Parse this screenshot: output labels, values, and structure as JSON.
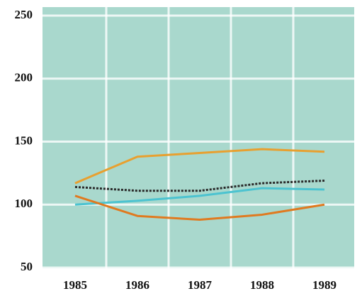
{
  "chart_data": {
    "type": "line",
    "categories": [
      "1985",
      "1986",
      "1987",
      "1988",
      "1989"
    ],
    "series": [
      {
        "color": "#e8a030",
        "values": [
          117,
          138,
          141,
          144,
          142
        ]
      },
      {
        "color": "#2a2a2a",
        "dashed": true,
        "values": [
          114,
          111,
          111,
          117,
          119
        ]
      },
      {
        "color": "#4cc3d0",
        "values": [
          100,
          103,
          107,
          113,
          112
        ]
      },
      {
        "color": "#e07a20",
        "values": [
          107,
          91,
          88,
          92,
          100
        ]
      }
    ],
    "ylim": [
      50,
      250
    ],
    "yticks": [
      50,
      100,
      150,
      200,
      250
    ],
    "grid": true
  }
}
